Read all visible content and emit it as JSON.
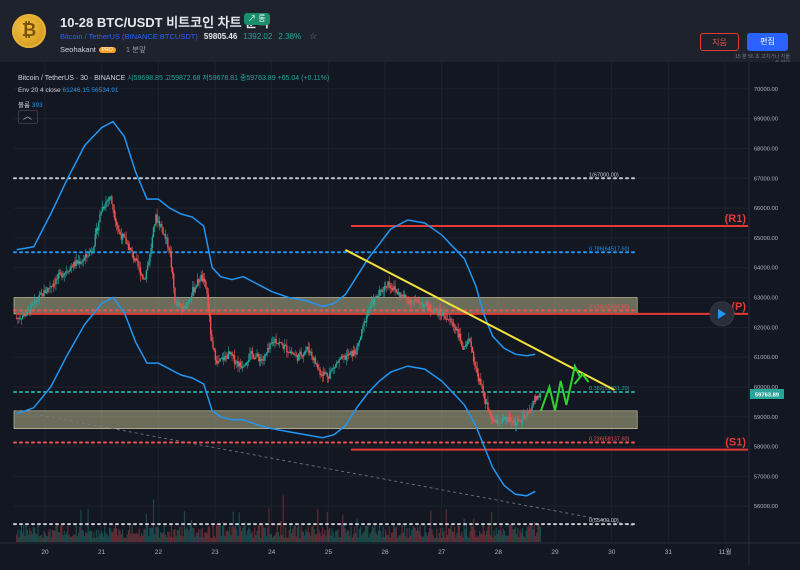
{
  "header": {
    "logo_glyph": "₿",
    "title": "10-28 BTC/USDT 비트코인 차트 분석",
    "badge": "↗ 롱",
    "symbol_name": "Bitcoin / TetherUS",
    "symbol_code": "(BINANCE:BTCUSDT)",
    "price": "59805.46",
    "change": "1392.02",
    "change_pct": "2.38%",
    "author": "Seohakant",
    "author_tag": "PRO",
    "posted_ago": "1 분앞",
    "delete_label": "지음",
    "edit_label": "편집",
    "edited_note_1": "15 분 56 초 고치거나 지울",
    "edited_note_2": "수 있다"
  },
  "legend": {
    "symbol": "Bitcoin / TetherUS · 30 · BINANCE",
    "ohlc": "시59698.85 고59872.68 저59678.81 종59763.89 +65.04 (+0.11%)",
    "env_label": "Env 20 4 close",
    "env_values": "61246.15 56534.91",
    "vol_label": "볼륨",
    "vol_value": "393"
  },
  "colors": {
    "background": "#131722",
    "up": "#26a69a",
    "down": "#ef5350",
    "envelope": "#2196f3",
    "zone": "#b7b28b",
    "trendline": "#f5e23b",
    "projection": "#31d22e",
    "support_resistance": "#e53935",
    "fib_dots": "#c7c9cf"
  },
  "chart_data": {
    "type": "candlestick",
    "symbol": "BTCUSDT",
    "interval": "30",
    "ylim": [
      54800,
      70900
    ],
    "y_ticks": [
      56000,
      57000,
      58000,
      59000,
      60000,
      61000,
      62000,
      63000,
      64000,
      65000,
      66000,
      67000,
      68000,
      69000,
      70000
    ],
    "x_ticks": [
      "20",
      "21",
      "22",
      "23",
      "24",
      "25",
      "26",
      "27",
      "28",
      "29",
      "30",
      "31",
      "11월"
    ],
    "last_price": "59763.89",
    "fib_levels": [
      {
        "label": "1(67000.00)",
        "value": 67000.0
      },
      {
        "label": "0.786(64517.60)",
        "value": 64517.6
      },
      {
        "label": "0.618(62568.80)",
        "value": 62568.8
      },
      {
        "label": "0.382(59831.20)",
        "value": 59831.2
      },
      {
        "label": "0.236(58137.60)",
        "value": 58137.6
      },
      {
        "label": "0(55400.00)",
        "value": 55400.0
      }
    ],
    "levels": [
      {
        "label": "(R1)",
        "value": 65400
      },
      {
        "label": "(P)",
        "value": 62450
      },
      {
        "label": "(S1)",
        "value": 57900
      }
    ],
    "zones": [
      {
        "from": 62450,
        "to": 63000
      },
      {
        "from": 58600,
        "to": 59200
      }
    ],
    "envelope_upper": [
      [
        19.5,
        64600
      ],
      [
        19.8,
        64700
      ],
      [
        20.1,
        65800
      ],
      [
        20.4,
        67000
      ],
      [
        20.7,
        68100
      ],
      [
        21.0,
        68700
      ],
      [
        21.2,
        68900
      ],
      [
        21.4,
        68400
      ],
      [
        21.6,
        67200
      ],
      [
        21.8,
        66300
      ],
      [
        22.0,
        66300
      ],
      [
        22.2,
        66000
      ],
      [
        22.4,
        65800
      ],
      [
        22.6,
        65700
      ],
      [
        22.8,
        65400
      ],
      [
        22.95,
        64000
      ],
      [
        23.1,
        63700
      ],
      [
        23.3,
        63600
      ],
      [
        23.5,
        63700
      ],
      [
        23.8,
        63400
      ],
      [
        24.0,
        63200
      ],
      [
        24.3,
        63000
      ],
      [
        24.6,
        62900
      ],
      [
        24.9,
        62700
      ],
      [
        25.1,
        62800
      ],
      [
        25.3,
        63100
      ],
      [
        25.5,
        63700
      ],
      [
        25.7,
        64300
      ],
      [
        25.9,
        64800
      ],
      [
        26.1,
        65300
      ],
      [
        26.4,
        65600
      ],
      [
        26.7,
        65500
      ],
      [
        27.0,
        65100
      ],
      [
        27.2,
        64700
      ],
      [
        27.4,
        64300
      ],
      [
        27.6,
        63400
      ],
      [
        27.75,
        62400
      ],
      [
        27.9,
        61700
      ],
      [
        28.1,
        61300
      ],
      [
        28.3,
        61100
      ],
      [
        28.5,
        61050
      ],
      [
        28.65,
        61100
      ]
    ],
    "envelope_lower": [
      [
        19.5,
        59100
      ],
      [
        19.8,
        59300
      ],
      [
        20.1,
        60000
      ],
      [
        20.4,
        61100
      ],
      [
        20.7,
        62100
      ],
      [
        21.0,
        62800
      ],
      [
        21.2,
        63000
      ],
      [
        21.4,
        62500
      ],
      [
        21.6,
        61500
      ],
      [
        21.8,
        60800
      ],
      [
        22.0,
        60800
      ],
      [
        22.2,
        60600
      ],
      [
        22.4,
        60400
      ],
      [
        22.6,
        60300
      ],
      [
        22.8,
        60100
      ],
      [
        22.95,
        59200
      ],
      [
        23.1,
        59000
      ],
      [
        23.3,
        58900
      ],
      [
        23.5,
        58900
      ],
      [
        23.8,
        58700
      ],
      [
        24.0,
        58600
      ],
      [
        24.3,
        58500
      ],
      [
        24.6,
        58400
      ],
      [
        24.9,
        58300
      ],
      [
        25.1,
        58400
      ],
      [
        25.3,
        58700
      ],
      [
        25.5,
        59300
      ],
      [
        25.7,
        59800
      ],
      [
        25.9,
        60200
      ],
      [
        26.1,
        60500
      ],
      [
        26.4,
        60700
      ],
      [
        26.7,
        60600
      ],
      [
        27.0,
        60200
      ],
      [
        27.2,
        59800
      ],
      [
        27.4,
        59400
      ],
      [
        27.6,
        58700
      ],
      [
        27.75,
        58000
      ],
      [
        27.9,
        57300
      ],
      [
        28.1,
        56700
      ],
      [
        28.3,
        56400
      ],
      [
        28.5,
        56350
      ],
      [
        28.65,
        56500
      ]
    ],
    "price_path": [
      [
        19.5,
        62300
      ],
      [
        19.7,
        62500
      ],
      [
        19.9,
        63000
      ],
      [
        20.1,
        63400
      ],
      [
        20.3,
        63800
      ],
      [
        20.5,
        64100
      ],
      [
        20.7,
        64300
      ],
      [
        20.85,
        64700
      ],
      [
        21.0,
        66000
      ],
      [
        21.15,
        66400
      ],
      [
        21.3,
        65200
      ],
      [
        21.45,
        64800
      ],
      [
        21.6,
        64200
      ],
      [
        21.75,
        63600
      ],
      [
        21.85,
        64400
      ],
      [
        21.95,
        65700
      ],
      [
        22.05,
        65400
      ],
      [
        22.2,
        64600
      ],
      [
        22.3,
        62800
      ],
      [
        22.45,
        62600
      ],
      [
        22.6,
        63200
      ],
      [
        22.75,
        63700
      ],
      [
        22.85,
        63300
      ],
      [
        22.95,
        61300
      ],
      [
        23.05,
        60800
      ],
      [
        23.25,
        61100
      ],
      [
        23.45,
        60700
      ],
      [
        23.65,
        61100
      ],
      [
        23.85,
        60900
      ],
      [
        24.05,
        61600
      ],
      [
        24.25,
        61300
      ],
      [
        24.45,
        61000
      ],
      [
        24.65,
        61300
      ],
      [
        24.85,
        60500
      ],
      [
        25.0,
        60400
      ],
      [
        25.15,
        60800
      ],
      [
        25.3,
        61000
      ],
      [
        25.5,
        61200
      ],
      [
        25.7,
        62600
      ],
      [
        25.85,
        63000
      ],
      [
        26.05,
        63500
      ],
      [
        26.25,
        63100
      ],
      [
        26.45,
        62900
      ],
      [
        26.65,
        62800
      ],
      [
        26.85,
        62600
      ],
      [
        27.05,
        62400
      ],
      [
        27.25,
        62000
      ],
      [
        27.4,
        61200
      ],
      [
        27.5,
        61600
      ],
      [
        27.6,
        60600
      ],
      [
        27.75,
        59700
      ],
      [
        27.85,
        59000
      ],
      [
        27.95,
        58800
      ],
      [
        28.15,
        58900
      ],
      [
        28.35,
        58800
      ],
      [
        28.5,
        59000
      ],
      [
        28.65,
        59600
      ],
      [
        28.75,
        59750
      ]
    ],
    "trendline": [
      [
        25.3,
        64600
      ],
      [
        30.05,
        59900
      ]
    ],
    "dashed_line": [
      [
        19.5,
        59200
      ],
      [
        30.4,
        55350
      ]
    ],
    "projection_path": [
      [
        28.75,
        59200
      ],
      [
        28.9,
        60000
      ],
      [
        29.0,
        59200
      ],
      [
        29.1,
        60200
      ],
      [
        29.2,
        59400
      ],
      [
        29.35,
        60700
      ],
      [
        29.45,
        60300
      ]
    ]
  }
}
